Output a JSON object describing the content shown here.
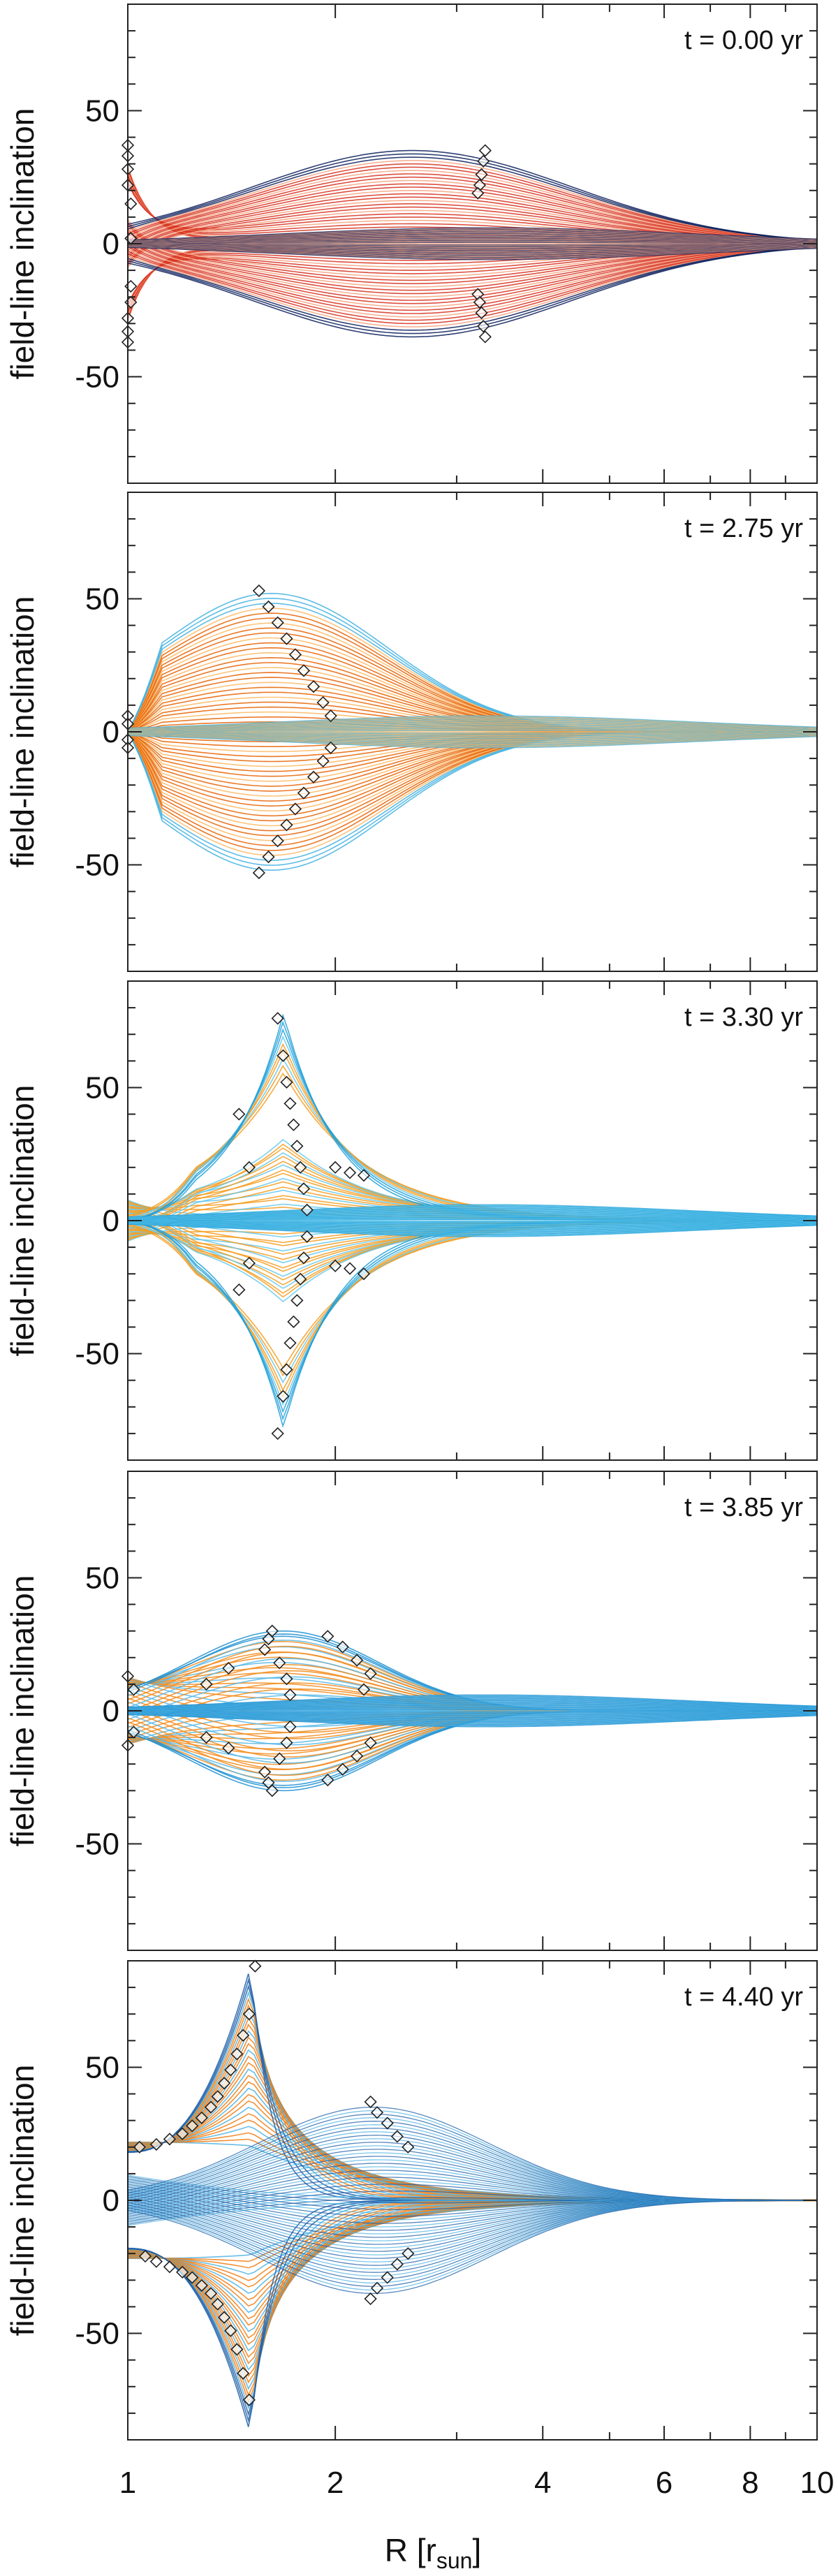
{
  "figure": {
    "xlabel_main": "R  [r",
    "xlabel_sub": "sun",
    "xlabel_end": "]",
    "x_ticks": [
      "1",
      "2",
      "4",
      "6",
      "8",
      "10"
    ]
  },
  "chart_data": [
    {
      "type": "line",
      "time_label": "t =  0.00 yr",
      "ylabel": "field-line inclination",
      "yticks": [
        "50",
        "0",
        "-50"
      ],
      "xscale": "log",
      "xlim": [
        1,
        10
      ],
      "ylim": [
        -90,
        90
      ],
      "grid": false,
      "line_colors": [
        "#d7301f",
        "#2166ac",
        "#0b1f5c",
        "#f4a582"
      ],
      "markers": [
        {
          "x": 1.0,
          "y": 37
        },
        {
          "x": 1.0,
          "y": 33
        },
        {
          "x": 1.0,
          "y": 28
        },
        {
          "x": 1.0,
          "y": 22
        },
        {
          "x": 1.01,
          "y": 15
        },
        {
          "x": 1.01,
          "y": 2
        },
        {
          "x": 1.01,
          "y": -16
        },
        {
          "x": 1.01,
          "y": -22
        },
        {
          "x": 1.0,
          "y": -28
        },
        {
          "x": 1.0,
          "y": -33
        },
        {
          "x": 1.0,
          "y": -37
        },
        {
          "x": 3.3,
          "y": 35
        },
        {
          "x": 3.28,
          "y": 31
        },
        {
          "x": 3.26,
          "y": 26
        },
        {
          "x": 3.24,
          "y": 22
        },
        {
          "x": 3.22,
          "y": 19
        },
        {
          "x": 3.22,
          "y": -19
        },
        {
          "x": 3.24,
          "y": -22
        },
        {
          "x": 3.26,
          "y": -26
        },
        {
          "x": 3.28,
          "y": -31
        },
        {
          "x": 3.3,
          "y": -35
        }
      ]
    },
    {
      "type": "line",
      "time_label": "t =  2.75 yr",
      "ylabel": "field-line inclination",
      "yticks": [
        "50",
        "0",
        "-50"
      ],
      "xscale": "log",
      "xlim": [
        1,
        10
      ],
      "ylim": [
        -90,
        90
      ],
      "grid": false,
      "line_colors": [
        "#e66101",
        "#f4a582",
        "#40b0e0",
        "#fdb863"
      ],
      "markers": [
        {
          "x": 1.0,
          "y": 6
        },
        {
          "x": 1.0,
          "y": 3
        },
        {
          "x": 1.0,
          "y": -3
        },
        {
          "x": 1.0,
          "y": -6
        },
        {
          "x": 1.55,
          "y": 53
        },
        {
          "x": 1.6,
          "y": 47
        },
        {
          "x": 1.65,
          "y": 41
        },
        {
          "x": 1.7,
          "y": 35
        },
        {
          "x": 1.75,
          "y": 29
        },
        {
          "x": 1.8,
          "y": 23
        },
        {
          "x": 1.86,
          "y": 17
        },
        {
          "x": 1.92,
          "y": 11
        },
        {
          "x": 1.97,
          "y": 6
        },
        {
          "x": 1.55,
          "y": -53
        },
        {
          "x": 1.6,
          "y": -47
        },
        {
          "x": 1.65,
          "y": -41
        },
        {
          "x": 1.7,
          "y": -35
        },
        {
          "x": 1.75,
          "y": -29
        },
        {
          "x": 1.8,
          "y": -23
        },
        {
          "x": 1.86,
          "y": -17
        },
        {
          "x": 1.92,
          "y": -11
        },
        {
          "x": 1.97,
          "y": -6
        }
      ]
    },
    {
      "type": "line",
      "time_label": "t =  3.30 yr",
      "ylabel": "field-line inclination",
      "yticks": [
        "50",
        "0",
        "-50"
      ],
      "xscale": "log",
      "xlim": [
        1,
        10
      ],
      "ylim": [
        -90,
        90
      ],
      "grid": false,
      "line_colors": [
        "#f49b1c",
        "#fdc878",
        "#1f9fd8",
        "#64c8ec"
      ],
      "markers": [
        {
          "x": 1.65,
          "y": 76
        },
        {
          "x": 1.68,
          "y": 62
        },
        {
          "x": 1.7,
          "y": 52
        },
        {
          "x": 1.72,
          "y": 44
        },
        {
          "x": 1.74,
          "y": 36
        },
        {
          "x": 1.76,
          "y": 28
        },
        {
          "x": 1.78,
          "y": 20
        },
        {
          "x": 1.8,
          "y": 12
        },
        {
          "x": 1.82,
          "y": 4
        },
        {
          "x": 1.65,
          "y": -80
        },
        {
          "x": 1.68,
          "y": -66
        },
        {
          "x": 1.7,
          "y": -56
        },
        {
          "x": 1.72,
          "y": -46
        },
        {
          "x": 1.74,
          "y": -38
        },
        {
          "x": 1.76,
          "y": -30
        },
        {
          "x": 1.78,
          "y": -22
        },
        {
          "x": 1.8,
          "y": -14
        },
        {
          "x": 1.82,
          "y": -6
        },
        {
          "x": 1.45,
          "y": 40
        },
        {
          "x": 1.5,
          "y": 20
        },
        {
          "x": 1.5,
          "y": -16
        },
        {
          "x": 1.45,
          "y": -26
        },
        {
          "x": 2.0,
          "y": 20
        },
        {
          "x": 2.1,
          "y": 18
        },
        {
          "x": 2.2,
          "y": 17
        },
        {
          "x": 2.0,
          "y": -17
        },
        {
          "x": 2.1,
          "y": -18
        },
        {
          "x": 2.2,
          "y": -20
        }
      ]
    },
    {
      "type": "line",
      "time_label": "t =  3.85 yr",
      "ylabel": "field-line inclination",
      "yticks": [
        "50",
        "0",
        "-50"
      ],
      "xscale": "log",
      "xlim": [
        1,
        10
      ],
      "ylim": [
        -90,
        90
      ],
      "grid": false,
      "line_colors": [
        "#f28a1a",
        "#fdb863",
        "#1c8fd1",
        "#58b8e6"
      ],
      "markers": [
        {
          "x": 1.0,
          "y": 13
        },
        {
          "x": 1.02,
          "y": 8
        },
        {
          "x": 1.02,
          "y": -8
        },
        {
          "x": 1.0,
          "y": -13
        },
        {
          "x": 1.62,
          "y": 30
        },
        {
          "x": 1.6,
          "y": 27
        },
        {
          "x": 1.58,
          "y": 23
        },
        {
          "x": 1.66,
          "y": 18
        },
        {
          "x": 1.7,
          "y": 12
        },
        {
          "x": 1.72,
          "y": 6
        },
        {
          "x": 1.72,
          "y": -6
        },
        {
          "x": 1.7,
          "y": -12
        },
        {
          "x": 1.66,
          "y": -18
        },
        {
          "x": 1.58,
          "y": -23
        },
        {
          "x": 1.6,
          "y": -27
        },
        {
          "x": 1.62,
          "y": -30
        },
        {
          "x": 1.95,
          "y": 28
        },
        {
          "x": 2.05,
          "y": 24
        },
        {
          "x": 2.15,
          "y": 19
        },
        {
          "x": 2.25,
          "y": 14
        },
        {
          "x": 2.2,
          "y": 8
        },
        {
          "x": 1.95,
          "y": -26
        },
        {
          "x": 2.05,
          "y": -22
        },
        {
          "x": 2.15,
          "y": -17
        },
        {
          "x": 2.25,
          "y": -12
        },
        {
          "x": 1.3,
          "y": 10
        },
        {
          "x": 1.4,
          "y": 16
        },
        {
          "x": 1.3,
          "y": -10
        },
        {
          "x": 1.4,
          "y": -14
        }
      ]
    },
    {
      "type": "line",
      "time_label": "t =  4.40 yr",
      "ylabel": "field-line inclination",
      "yticks": [
        "50",
        "0",
        "-50"
      ],
      "xscale": "log",
      "xlim": [
        1,
        10
      ],
      "ylim": [
        -90,
        90
      ],
      "grid": false,
      "line_colors": [
        "#f07d12",
        "#fdb863",
        "#1f5fa8",
        "#4fb3e2"
      ],
      "markers": [
        {
          "x": 1.53,
          "y": 88
        },
        {
          "x": 1.5,
          "y": 70
        },
        {
          "x": 1.47,
          "y": 62
        },
        {
          "x": 1.44,
          "y": 55
        },
        {
          "x": 1.41,
          "y": 49
        },
        {
          "x": 1.38,
          "y": 44
        },
        {
          "x": 1.35,
          "y": 39
        },
        {
          "x": 1.32,
          "y": 35
        },
        {
          "x": 1.28,
          "y": 31
        },
        {
          "x": 1.24,
          "y": 28
        },
        {
          "x": 1.2,
          "y": 25
        },
        {
          "x": 1.15,
          "y": 23
        },
        {
          "x": 1.1,
          "y": 21
        },
        {
          "x": 1.04,
          "y": 20
        },
        {
          "x": 1.5,
          "y": -75
        },
        {
          "x": 1.47,
          "y": -65
        },
        {
          "x": 1.44,
          "y": -56
        },
        {
          "x": 1.41,
          "y": -49
        },
        {
          "x": 1.38,
          "y": -44
        },
        {
          "x": 1.35,
          "y": -39
        },
        {
          "x": 1.32,
          "y": -35
        },
        {
          "x": 1.28,
          "y": -32
        },
        {
          "x": 1.24,
          "y": -29
        },
        {
          "x": 1.2,
          "y": -27
        },
        {
          "x": 1.15,
          "y": -25
        },
        {
          "x": 1.1,
          "y": -23
        },
        {
          "x": 1.06,
          "y": -21
        },
        {
          "x": 2.25,
          "y": 37
        },
        {
          "x": 2.3,
          "y": 33
        },
        {
          "x": 2.38,
          "y": 29
        },
        {
          "x": 2.46,
          "y": 24
        },
        {
          "x": 2.55,
          "y": 20
        },
        {
          "x": 2.25,
          "y": -37
        },
        {
          "x": 2.3,
          "y": -33
        },
        {
          "x": 2.38,
          "y": -29
        },
        {
          "x": 2.46,
          "y": -24
        },
        {
          "x": 2.55,
          "y": -20
        }
      ]
    }
  ]
}
